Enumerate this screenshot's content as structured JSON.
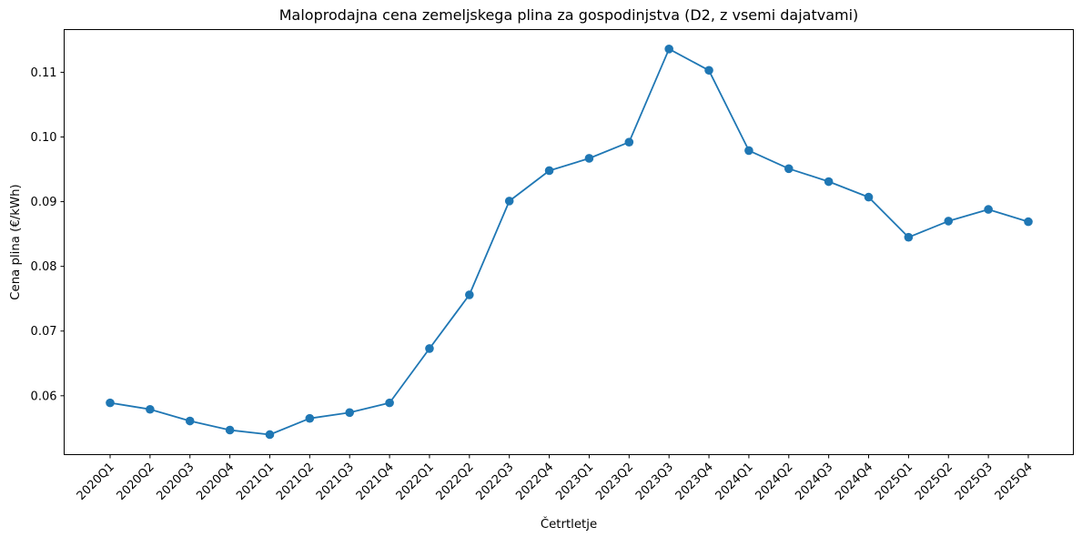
{
  "chart_data": {
    "type": "line",
    "title": "Maloprodajna cena zemeljskega plina za gospodinjstva (D2, z vsemi dajatvami)",
    "xlabel": "Četrtletje",
    "ylabel": "Cena plina (€/kWh)",
    "categories": [
      "2020Q1",
      "2020Q2",
      "2020Q3",
      "2020Q4",
      "2021Q1",
      "2021Q2",
      "2021Q3",
      "2021Q4",
      "2022Q1",
      "2022Q2",
      "2022Q3",
      "2022Q4",
      "2023Q1",
      "2023Q2",
      "2023Q3",
      "2023Q4",
      "2024Q1",
      "2024Q2",
      "2024Q3",
      "2024Q4",
      "2025Q1",
      "2025Q2",
      "2025Q3",
      "2025Q4"
    ],
    "series": [
      {
        "name": "Cena plina",
        "color": "#1f77b4",
        "marker": "circle",
        "values": [
          0.0589,
          0.0579,
          0.0561,
          0.0547,
          0.054,
          0.0565,
          0.0574,
          0.0589,
          0.0673,
          0.0756,
          0.0901,
          0.0948,
          0.0967,
          0.0992,
          0.1136,
          0.1103,
          0.0979,
          0.0951,
          0.0931,
          0.0907,
          0.0845,
          0.087,
          0.0888,
          0.0869
        ]
      }
    ],
    "yticks": [
      "0.06",
      "0.07",
      "0.08",
      "0.09",
      "0.10",
      "0.11"
    ],
    "ytick_values": [
      0.06,
      0.07,
      0.08,
      0.09,
      0.1,
      0.11
    ],
    "ylim": [
      0.0509,
      0.1166
    ],
    "grid": false,
    "legend": null,
    "xtick_rotation": 45
  }
}
